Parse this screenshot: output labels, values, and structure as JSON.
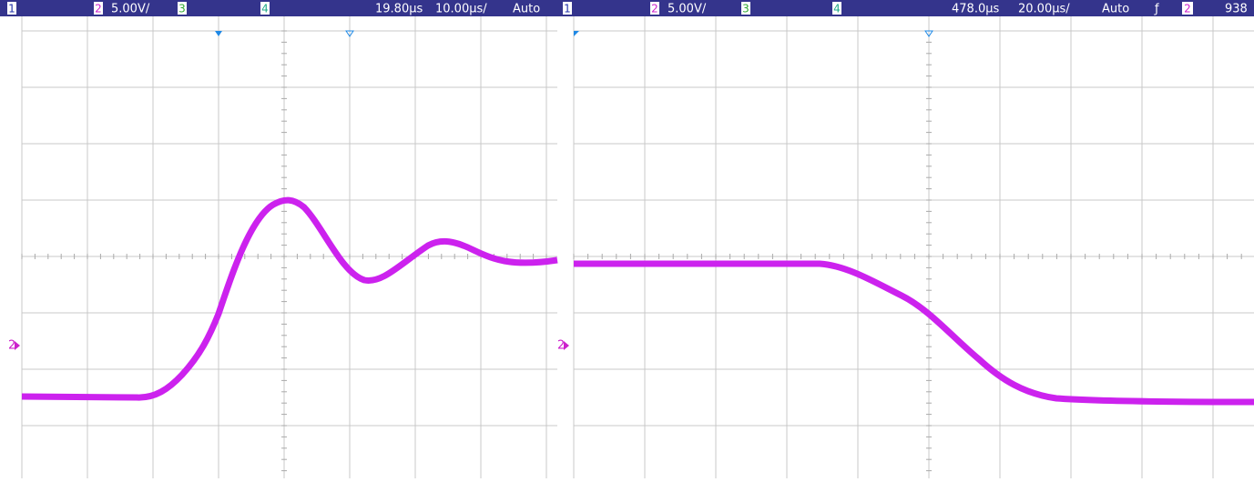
{
  "panels": [
    {
      "header": {
        "ch1": "1",
        "ch2": "2",
        "scale": "5.00V/",
        "ch3": "3",
        "ch4": "4",
        "delay": "19.80µs",
        "timebase": "10.00µs/",
        "mode": "Auto"
      },
      "channel_marker": "2"
    },
    {
      "header": {
        "ch1": "1",
        "ch2": "2",
        "scale": "5.00V/",
        "ch3": "3",
        "ch4": "4",
        "delay": "478.0µs",
        "timebase": "20.00µs/",
        "mode": "Auto",
        "trigger_slope": "ƒ",
        "trigger_source": "2",
        "trigger_level": "938"
      },
      "channel_marker": "2"
    }
  ]
}
